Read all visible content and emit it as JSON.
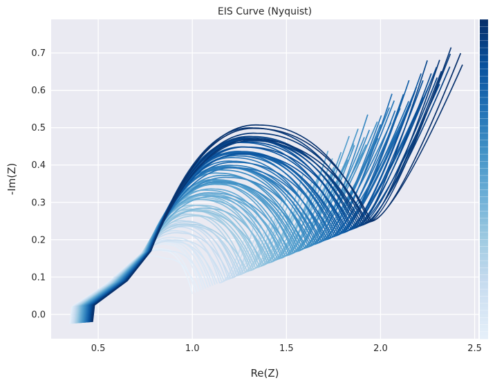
{
  "chart_data": {
    "type": "line",
    "title": "EIS Curve (Nyquist)",
    "xlabel": "Re(Z)",
    "ylabel": "-Im(Z)",
    "xlim": [
      0.25,
      2.52
    ],
    "ylim": [
      -0.065,
      0.79
    ],
    "xticks": [
      0.5,
      1.0,
      1.5,
      2.0,
      2.5
    ],
    "yticks": [
      0.0,
      0.1,
      0.2,
      0.3,
      0.4,
      0.5,
      0.6,
      0.7
    ],
    "xtick_labels": [
      "0.5",
      "1.0",
      "1.5",
      "2.0",
      "2.5"
    ],
    "ytick_labels": [
      "0.0",
      "0.1",
      "0.2",
      "0.3",
      "0.4",
      "0.5",
      "0.6",
      "0.7"
    ],
    "grid": true,
    "background": "#eaeaf2",
    "grid_color": "#ffffff",
    "colormap": "Blues",
    "colorbar": true,
    "series_count": 90,
    "series_shape": {
      "first": {
        "start": [
          0.35,
          -0.025
        ],
        "knee": [
          0.72,
          0.16
        ],
        "arc_peak": [
          0.85,
          0.16
        ],
        "arc_end": [
          1.0,
          0.055
        ],
        "tail_end": [
          1.0,
          0.055
        ]
      },
      "last": {
        "start": [
          0.47,
          -0.02
        ],
        "knee": [
          0.78,
          0.17
        ],
        "arc_peak": [
          1.35,
          0.495
        ],
        "arc_end": [
          1.95,
          0.25
        ],
        "tail_end": [
          2.4,
          0.7
        ]
      }
    }
  }
}
